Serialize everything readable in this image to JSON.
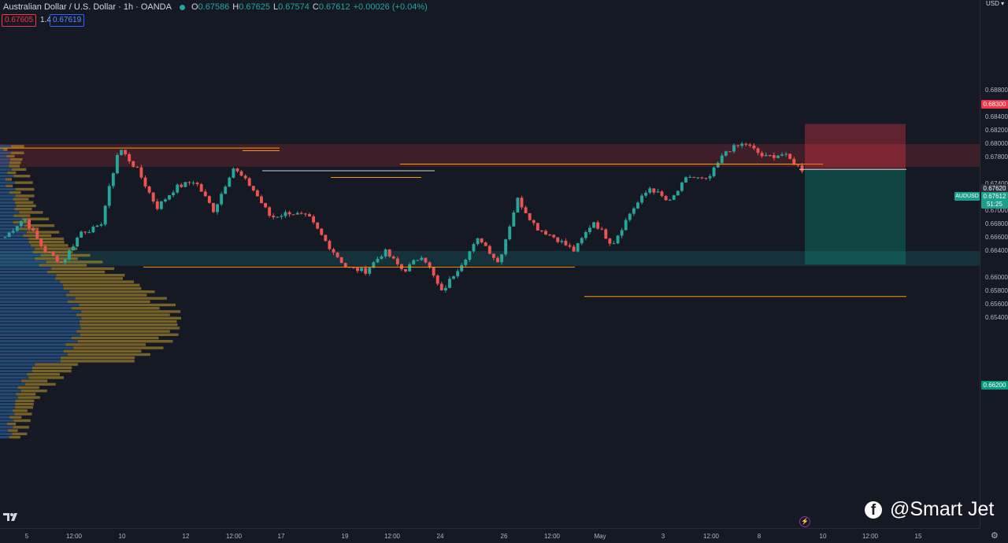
{
  "header": {
    "symbol": "Australian Dollar / U.S. Dollar · 1h · OANDA",
    "open_key": "O",
    "open": "0.67586",
    "high_key": "H",
    "high": "0.67625",
    "low_key": "L",
    "low": "0.67574",
    "close_key": "C",
    "close": "0.67612",
    "change": "+0.00026 (+0.04%)"
  },
  "trade": {
    "sell": "0.67605",
    "spread": "1.4",
    "buy": "0.67619"
  },
  "price_axis": {
    "currency": "USD",
    "ticks": [
      "0.68800",
      "0.68600",
      "0.68400",
      "0.68200",
      "0.68000",
      "0.67800",
      "0.67400",
      "0.67200",
      "0.67000",
      "0.66800",
      "0.66600",
      "0.66400",
      "0.66000",
      "0.65800",
      "0.65600",
      "0.65400"
    ],
    "labels": {
      "stop": "0.68300",
      "entry": "0.67620",
      "current": "0.67612",
      "countdown": "51:25",
      "target": "0.66200"
    },
    "symbol_tag": "AUDUSD"
  },
  "time_axis": {
    "ticks": [
      "5",
      "12:00",
      "10",
      "12",
      "12:00",
      "17",
      "19",
      "12:00",
      "24",
      "26",
      "12:00",
      "May",
      "3",
      "12:00",
      "8",
      "10",
      "12:00",
      "15"
    ]
  },
  "watermark": {
    "text": "@Smart Jet",
    "icon": "facebook-icon"
  },
  "colors": {
    "background": "#151924",
    "up": "#26a69a",
    "down": "#ef5350",
    "zone_red": "#f23645",
    "zone_teal": "#1b5e5b",
    "level_line": "#ff9800",
    "stop_label": "#f23645",
    "target_label": "#089981",
    "current_label": "#1a9e8e"
  },
  "chart_data": {
    "type": "candlestick",
    "instrument": "AUDUSD",
    "timeframe": "1h",
    "ylim": [
      0.652,
      0.69
    ],
    "anchor_prices": [
      0.6661,
      0.669,
      0.6643,
      0.6622,
      0.6669,
      0.6675,
      0.6795,
      0.676,
      0.6705,
      0.6735,
      0.6745,
      0.67,
      0.6765,
      0.6735,
      0.669,
      0.6698,
      0.669,
      0.665,
      0.6615,
      0.661,
      0.664,
      0.661,
      0.6635,
      0.6578,
      0.662,
      0.666,
      0.6622,
      0.6718,
      0.6675,
      0.666,
      0.664,
      0.6685,
      0.665,
      0.67,
      0.6735,
      0.6712,
      0.6752,
      0.6745,
      0.679,
      0.6801,
      0.678,
      0.6785,
      0.6762
    ],
    "zones": [
      {
        "name": "supply",
        "low": 0.6766,
        "high": 0.68
      },
      {
        "name": "demand",
        "low": 0.6618,
        "high": 0.664
      }
    ],
    "levels": [
      0.6794,
      0.679,
      0.677,
      0.676,
      0.675,
      0.6616,
      0.6572
    ],
    "position": {
      "side": "short",
      "entry": 0.6762,
      "stop": 0.683,
      "target": 0.662
    }
  }
}
